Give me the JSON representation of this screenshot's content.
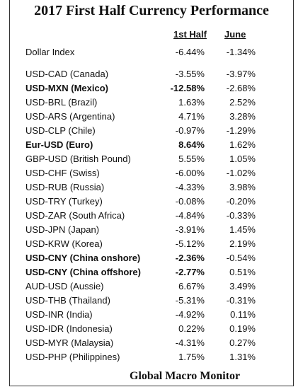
{
  "title": "2017 First Half Currency Performance",
  "headers": {
    "first_half": "1st Half",
    "june": "June"
  },
  "rows": [
    {
      "name": "Dollar Index",
      "first_half": "-6.44%",
      "june": "-1.34%",
      "bold": false
    },
    {
      "name": "USD-CAD (Canada)",
      "first_half": "-3.55%",
      "june": "-3.97%",
      "bold": false
    },
    {
      "name": "USD-MXN  (Mexico)",
      "first_half": "-12.58%",
      "june": "-2.68%",
      "bold": true
    },
    {
      "name": "USD-BRL (Brazil)",
      "first_half": "1.63%",
      "june": "2.52%",
      "bold": false
    },
    {
      "name": "USD-ARS (Argentina)",
      "first_half": "4.71%",
      "june": "3.28%",
      "bold": false
    },
    {
      "name": "USD-CLP (Chile)",
      "first_half": "-0.97%",
      "june": "-1.29%",
      "bold": false
    },
    {
      "name": "Eur-USD (Euro)",
      "first_half": "8.64%",
      "june": "1.62%",
      "bold": true
    },
    {
      "name": "GBP-USD (British Pound)",
      "first_half": "5.55%",
      "june": "1.05%",
      "bold": false
    },
    {
      "name": "USD-CHF (Swiss)",
      "first_half": "-6.00%",
      "june": "-1.02%",
      "bold": false
    },
    {
      "name": "USD-RUB (Russia)",
      "first_half": "-4.33%",
      "june": "3.98%",
      "bold": false
    },
    {
      "name": "USD-TRY (Turkey)",
      "first_half": "-0.08%",
      "june": "-0.20%",
      "bold": false
    },
    {
      "name": "USD-ZAR (South Africa)",
      "first_half": "-4.84%",
      "june": "-0.33%",
      "bold": false
    },
    {
      "name": "USD-JPN (Japan)",
      "first_half": "-3.91%",
      "june": "1.45%",
      "bold": false
    },
    {
      "name": "USD-KRW (Korea)",
      "first_half": "-5.12%",
      "june": "2.19%",
      "bold": false
    },
    {
      "name": "USD-CNY (China onshore)",
      "first_half": "-2.36%",
      "june": "-0.54%",
      "bold": true
    },
    {
      "name": "USD-CNY (China offshore)",
      "first_half": "-2.77%",
      "june": "0.51%",
      "bold": true
    },
    {
      "name": "AUD-USD (Aussie)",
      "first_half": "6.67%",
      "june": "3.49%",
      "bold": false
    },
    {
      "name": "USD-THB  (Thailand)",
      "first_half": "-5.31%",
      "june": "-0.31%",
      "bold": false
    },
    {
      "name": "USD-INR (India)",
      "first_half": "-4.92%",
      "june": "0.11%",
      "bold": false
    },
    {
      "name": "USD-IDR (Indonesia)",
      "first_half": "0.22%",
      "june": "0.19%",
      "bold": false
    },
    {
      "name": "USD-MYR (Malaysia)",
      "first_half": "-4.31%",
      "june": "0.27%",
      "bold": false
    },
    {
      "name": "USD-PHP (Philippines)",
      "first_half": "1.75%",
      "june": "1.31%",
      "bold": false
    }
  ],
  "footer": "Global Macro Monitor"
}
